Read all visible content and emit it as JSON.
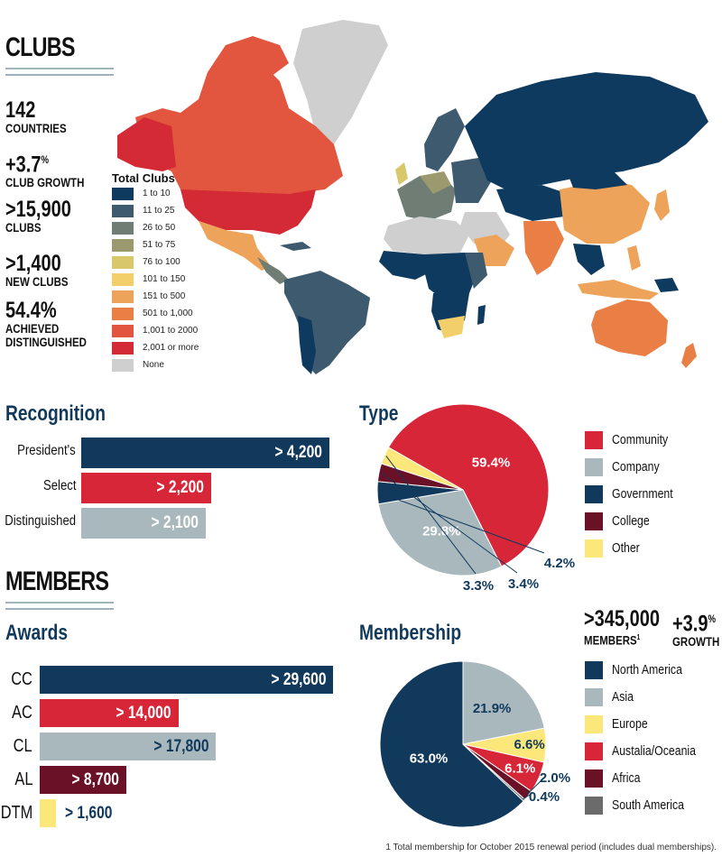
{
  "clubs": {
    "title": "CLUBS",
    "stats": [
      {
        "value": "142",
        "label": "COUNTRIES"
      },
      {
        "value": "+3.7",
        "sup": "%",
        "label": "CLUB GROWTH"
      },
      {
        "value": ">15,900",
        "label": "CLUBS"
      },
      {
        "value": ">1,400",
        "label": "NEW CLUBS"
      },
      {
        "value": "54.4%",
        "label": "ACHIEVED DISTINGUISHED"
      }
    ],
    "map_legend": {
      "title": "Total Clubs",
      "items": [
        {
          "label": "1 to 10",
          "color": "#0f3a5f"
        },
        {
          "label": "11 to 25",
          "color": "#3d5a6e"
        },
        {
          "label": "26 to 50",
          "color": "#6f7d74"
        },
        {
          "label": "51 to 75",
          "color": "#9b9a6f"
        },
        {
          "label": "76 to 100",
          "color": "#d8c86a"
        },
        {
          "label": "101 to 150",
          "color": "#f2cf6a"
        },
        {
          "label": "151 to 500",
          "color": "#eea35a"
        },
        {
          "label": "501 to 1,000",
          "color": "#e97f45"
        },
        {
          "label": "1,001 to 2000",
          "color": "#e2553f"
        },
        {
          "label": "2,001 or more",
          "color": "#d42a36"
        },
        {
          "label": "None",
          "color": "#cfcfcf"
        }
      ]
    }
  },
  "recognition": {
    "title": "Recognition",
    "chart_data": {
      "type": "bar",
      "orientation": "horizontal",
      "categories": [
        "President's",
        "Select",
        "Distinguished"
      ],
      "values": [
        4200,
        2200,
        2100
      ],
      "labels": [
        "> 4,200",
        "> 2,200",
        "> 2,100"
      ],
      "colors": [
        "#10395c",
        "#d72638",
        "#a9b8bd"
      ],
      "label_colors": [
        "#ffffff",
        "#ffffff",
        "#ffffff"
      ]
    }
  },
  "type": {
    "title": "Type",
    "chart_data": {
      "type": "pie",
      "categories": [
        "Community",
        "Company",
        "Government",
        "College",
        "Other"
      ],
      "values": [
        59.4,
        29.8,
        4.2,
        3.4,
        3.3
      ],
      "labels": [
        "59.4%",
        "29.8%",
        "4.2%",
        "3.4%",
        "3.3%"
      ],
      "colors": [
        "#d72638",
        "#a9b8bd",
        "#10395c",
        "#6a1027",
        "#fbe77a"
      ]
    }
  },
  "members": {
    "title": "MEMBERS",
    "total_value": ">345,000",
    "total_label": "MEMBERS",
    "total_sup": "1",
    "growth_value": "+3.9",
    "growth_sup": "%",
    "growth_label": "GROWTH"
  },
  "awards": {
    "title": "Awards",
    "chart_data": {
      "type": "bar",
      "orientation": "horizontal",
      "categories": [
        "CC",
        "AC",
        "CL",
        "AL",
        "DTM"
      ],
      "values": [
        29600,
        14000,
        17800,
        8700,
        1600
      ],
      "labels": [
        "> 29,600",
        "> 14,000",
        "> 17,800",
        "> 8,700",
        "> 1,600"
      ],
      "colors": [
        "#10395c",
        "#d72638",
        "#a9b8bd",
        "#6a1027",
        "#fbe77a"
      ],
      "label_colors": [
        "#ffffff",
        "#ffffff",
        "#10395c",
        "#ffffff",
        "#10395c"
      ]
    }
  },
  "membership": {
    "title": "Membership",
    "chart_data": {
      "type": "pie",
      "categories": [
        "North America",
        "Asia",
        "Europe",
        "Austalia/Oceania",
        "Africa",
        "South America"
      ],
      "values": [
        63.0,
        21.9,
        6.6,
        6.1,
        2.0,
        0.4
      ],
      "labels": [
        "63.0%",
        "21.9%",
        "6.6%",
        "6.1%",
        "2.0%",
        "0.4%"
      ],
      "colors": [
        "#10395c",
        "#a9b8bd",
        "#fbe77a",
        "#d72638",
        "#6a1027",
        "#6b6b6b"
      ]
    }
  },
  "footnote": "1 Total membership for October 2015 renewal period (includes dual memberships)."
}
